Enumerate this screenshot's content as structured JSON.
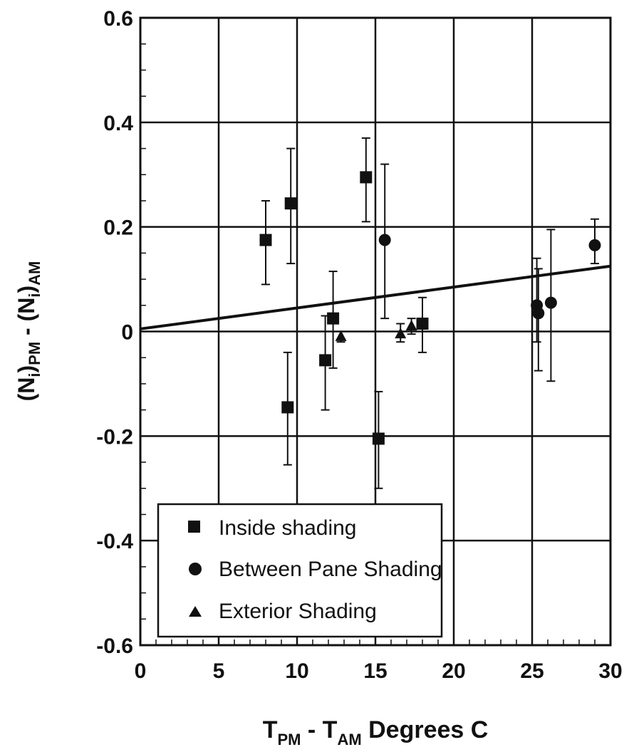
{
  "chart_data": {
    "type": "scatter",
    "xlabel": {
      "t1": "T",
      "s1": "PM",
      "mid": " - T",
      "s2": "AM",
      "tail": "  Degrees C"
    },
    "ylabel": {
      "p1": "(N",
      "s1": "i",
      "p2": ")",
      "s2": "PM",
      "p3": " - (N",
      "s3": "i",
      "p4": ")",
      "s4": "AM"
    },
    "xlim": [
      0,
      30
    ],
    "ylim": [
      -0.6,
      0.6
    ],
    "x_ticks": [
      "0",
      "5",
      "10",
      "15",
      "20",
      "25",
      "30"
    ],
    "y_ticks": [
      "-0.6",
      "-0.4",
      "-0.2",
      "0",
      "0.2",
      "0.4",
      "0.6"
    ],
    "grid": true,
    "legend_position": "bottom-left",
    "series": [
      {
        "name": "Inside shading",
        "marker": "square",
        "color": "#111111",
        "points": [
          {
            "x": 8.0,
            "y": 0.175,
            "err_low": 0.09,
            "err_high": 0.25
          },
          {
            "x": 9.6,
            "y": 0.245,
            "err_low": 0.13,
            "err_high": 0.35
          },
          {
            "x": 14.4,
            "y": 0.295,
            "err_low": 0.21,
            "err_high": 0.37
          },
          {
            "x": 12.3,
            "y": 0.025,
            "err_low": -0.07,
            "err_high": 0.115
          },
          {
            "x": 11.8,
            "y": -0.055,
            "err_low": -0.15,
            "err_high": 0.03
          },
          {
            "x": 9.4,
            "y": -0.145,
            "err_low": -0.255,
            "err_high": -0.04
          },
          {
            "x": 15.2,
            "y": -0.205,
            "err_low": -0.3,
            "err_high": -0.115
          },
          {
            "x": 18.0,
            "y": 0.015,
            "err_low": -0.04,
            "err_high": 0.065
          }
        ]
      },
      {
        "name": "Between Pane Shading",
        "marker": "circle",
        "color": "#111111",
        "points": [
          {
            "x": 15.6,
            "y": 0.175,
            "err_low": 0.025,
            "err_high": 0.32
          },
          {
            "x": 25.3,
            "y": 0.05,
            "err_low": -0.02,
            "err_high": 0.14
          },
          {
            "x": 25.4,
            "y": 0.035,
            "err_low": -0.075,
            "err_high": 0.12
          },
          {
            "x": 26.2,
            "y": 0.055,
            "err_low": -0.095,
            "err_high": 0.195
          },
          {
            "x": 29.0,
            "y": 0.165,
            "err_low": 0.13,
            "err_high": 0.215
          }
        ]
      },
      {
        "name": "Exterior Shading",
        "marker": "triangle",
        "color": "#111111",
        "points": [
          {
            "x": 12.8,
            "y": -0.01,
            "err_low": -0.02,
            "err_high": 0.0
          },
          {
            "x": 16.6,
            "y": -0.005,
            "err_low": -0.02,
            "err_high": 0.015
          },
          {
            "x": 17.3,
            "y": 0.01,
            "err_low": -0.005,
            "err_high": 0.025
          }
        ]
      }
    ],
    "trend_line": {
      "x": [
        0,
        30
      ],
      "y": [
        0.005,
        0.125
      ]
    }
  }
}
